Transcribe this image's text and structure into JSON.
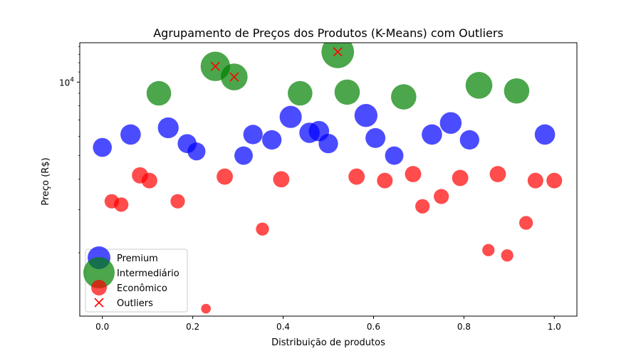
{
  "chart_data": {
    "type": "scatter",
    "title": "Agrupamento de Preços dos Produtos (K-Means) com Outliers",
    "xlabel": "Distribuição de produtos",
    "ylabel": "Preço (R$)",
    "xlim": [
      -0.05,
      1.05
    ],
    "ylim": [
      1100,
      14500
    ],
    "yscale": "log",
    "x_ticks": [
      0.0,
      0.2,
      0.4,
      0.6,
      0.8,
      1.0
    ],
    "x_tick_labels": [
      "0.0",
      "0.2",
      "0.4",
      "0.6",
      "0.8",
      "1.0"
    ],
    "y_ticks": [
      10000
    ],
    "y_tick_labels": [
      "10",
      "4"
    ],
    "legend_position": "lower-left",
    "series": [
      {
        "name": "Premium",
        "color": "#0000ff",
        "alpha": 0.7,
        "x": [
          0.0,
          0.0625,
          0.1458,
          0.1875,
          0.2083,
          0.3125,
          0.3333,
          0.375,
          0.4167,
          0.4583,
          0.4792,
          0.5,
          0.5833,
          0.6042,
          0.6458,
          0.7292,
          0.7708,
          0.8125,
          0.9792
        ],
        "y": [
          5400,
          6100,
          6500,
          5600,
          5200,
          5000,
          6100,
          5800,
          7200,
          6200,
          6300,
          5600,
          7300,
          5900,
          5000,
          6100,
          6800,
          5800,
          6100
        ],
        "sizes": [
          950,
          1100,
          1150,
          950,
          850,
          900,
          1000,
          1000,
          1300,
          1100,
          1100,
          1000,
          1400,
          1050,
          900,
          1100,
          1250,
          1000,
          1100
        ]
      },
      {
        "name": "Intermediário",
        "color": "#008000",
        "alpha": 0.7,
        "x": [
          0.125,
          0.25,
          0.2917,
          0.4375,
          0.5208,
          0.5417,
          0.6667,
          0.8333,
          0.9167
        ],
        "y": [
          9000,
          11600,
          10500,
          9000,
          13300,
          9100,
          8700,
          9700,
          9200
        ],
        "sizes": [
          1600,
          2300,
          1900,
          1600,
          2800,
          1700,
          1700,
          1900,
          1700
        ]
      },
      {
        "name": "Econômico",
        "color": "#ff0000",
        "alpha": 0.7,
        "x": [
          0.0208,
          0.0417,
          0.0833,
          0.1042,
          0.1667,
          0.2292,
          0.2708,
          0.3542,
          0.3958,
          0.5625,
          0.625,
          0.6875,
          0.7083,
          0.75,
          0.7917,
          0.8542,
          0.875,
          0.8958,
          0.9375,
          0.9583,
          1.0
        ],
        "y": [
          3250,
          3150,
          4150,
          3950,
          3250,
          1180,
          4100,
          2500,
          4000,
          4100,
          3950,
          4200,
          3100,
          3400,
          4050,
          2050,
          4200,
          1950,
          2650,
          3950,
          3950
        ],
        "sizes": [
          550,
          550,
          700,
          650,
          550,
          250,
          700,
          450,
          700,
          700,
          650,
          700,
          550,
          600,
          700,
          400,
          700,
          400,
          500,
          650,
          650
        ]
      },
      {
        "name": "Outliers",
        "color": "#ff0000",
        "marker": "x",
        "x": [
          0.25,
          0.2917,
          0.5208
        ],
        "y": [
          11600,
          10500,
          13300
        ]
      }
    ]
  }
}
